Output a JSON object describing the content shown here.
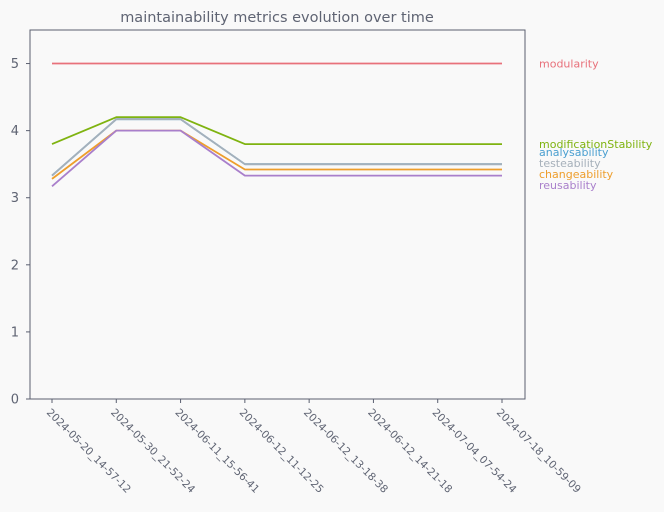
{
  "chart_data": {
    "type": "line",
    "title": "maintainability metrics evolution over time",
    "xlabel": "",
    "ylabel": "",
    "ylim": [
      0,
      5.5
    ],
    "yticks": [
      0,
      1,
      2,
      3,
      4,
      5
    ],
    "grid": false,
    "legend_placement": "right, labels aligned with line ends",
    "categories": [
      "2024-05-20_14-57-12",
      "2024-05-30_21-52-24",
      "2024-06-11_15-56-41",
      "2024-06-12_11-12-25",
      "2024-06-12_13-18-38",
      "2024-06-12_14-21-18",
      "2024-07-04_07-54-24",
      "2024-07-18_10-59-09"
    ],
    "series": [
      {
        "name": "modularity",
        "color": "#e8717b",
        "values": [
          5,
          5,
          5,
          5,
          5,
          5,
          5,
          5
        ]
      },
      {
        "name": "modificationStability",
        "color": "#7fb310",
        "values": [
          3.8,
          4.2,
          4.2,
          3.8,
          3.8,
          3.8,
          3.8,
          3.8
        ]
      },
      {
        "name": "analysability",
        "color": "#4a9fd0",
        "values": [
          3.33,
          4.17,
          4.17,
          3.5,
          3.5,
          3.5,
          3.5,
          3.5
        ]
      },
      {
        "name": "testeability",
        "color": "#a6b0ba",
        "values": [
          3.33,
          4.17,
          4.17,
          3.5,
          3.5,
          3.5,
          3.5,
          3.5
        ]
      },
      {
        "name": "changeability",
        "color": "#ee9e2c",
        "values": [
          3.28,
          4.0,
          4.0,
          3.42,
          3.42,
          3.42,
          3.42,
          3.42
        ]
      },
      {
        "name": "reusability",
        "color": "#a97fcb",
        "values": [
          3.17,
          4.0,
          4.0,
          3.33,
          3.33,
          3.33,
          3.33,
          3.33
        ]
      }
    ]
  }
}
